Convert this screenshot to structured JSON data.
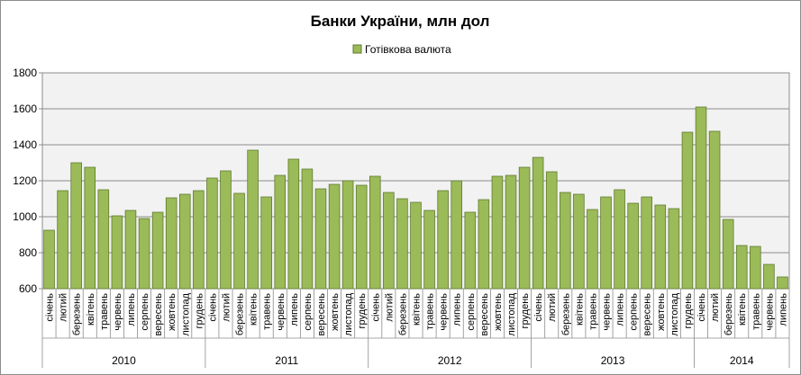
{
  "chart_data": {
    "type": "bar",
    "title": "Банки України, млн дол",
    "legend": {
      "position": "top",
      "entries": [
        "Готівкова валюта"
      ]
    },
    "xlabel": "",
    "ylabel": "",
    "ylim": [
      600,
      1800
    ],
    "yticks": [
      600,
      800,
      1000,
      1200,
      1400,
      1600,
      1800
    ],
    "grid": true,
    "colors": {
      "bar_fill": "#9bbb59",
      "bar_stroke": "#5f7a2e",
      "plot_bg": "#f2f2f2"
    },
    "years": [
      {
        "label": "2010",
        "months": [
          "січень",
          "лютий",
          "березень",
          "квітень",
          "травень",
          "червень",
          "липень",
          "серпень",
          "вересень",
          "жовтень",
          "листопад",
          "грудень"
        ]
      },
      {
        "label": "2011",
        "months": [
          "січень",
          "лютий",
          "березень",
          "квітень",
          "травень",
          "червень",
          "липень",
          "серпень",
          "вересень",
          "жовтень",
          "листопад",
          "грудень"
        ]
      },
      {
        "label": "2012",
        "months": [
          "січень",
          "лютий",
          "березень",
          "квітень",
          "травень",
          "червень",
          "липень",
          "серпень",
          "вересень",
          "жовтень",
          "листопад",
          "грудень"
        ]
      },
      {
        "label": "2013",
        "months": [
          "січень",
          "лютий",
          "березень",
          "квітень",
          "травень",
          "червень",
          "липень",
          "серпень",
          "вересень",
          "жовтень",
          "листопад",
          "грудень"
        ]
      },
      {
        "label": "2014",
        "months": [
          "січень",
          "лютий",
          "березень",
          "квітень",
          "травень",
          "червень",
          "липень"
        ]
      }
    ],
    "series": [
      {
        "name": "Готівкова валюта",
        "values": [
          925,
          1145,
          1300,
          1275,
          1150,
          1005,
          1035,
          990,
          1025,
          1105,
          1125,
          1145,
          1215,
          1255,
          1130,
          1370,
          1110,
          1230,
          1320,
          1265,
          1155,
          1180,
          1200,
          1175,
          1225,
          1135,
          1100,
          1080,
          1035,
          1145,
          1200,
          1025,
          1095,
          1225,
          1230,
          1275,
          1330,
          1250,
          1135,
          1125,
          1040,
          1110,
          1150,
          1075,
          1110,
          1065,
          1045,
          1470,
          1610,
          1475,
          985,
          840,
          835,
          735,
          665
        ]
      }
    ]
  }
}
